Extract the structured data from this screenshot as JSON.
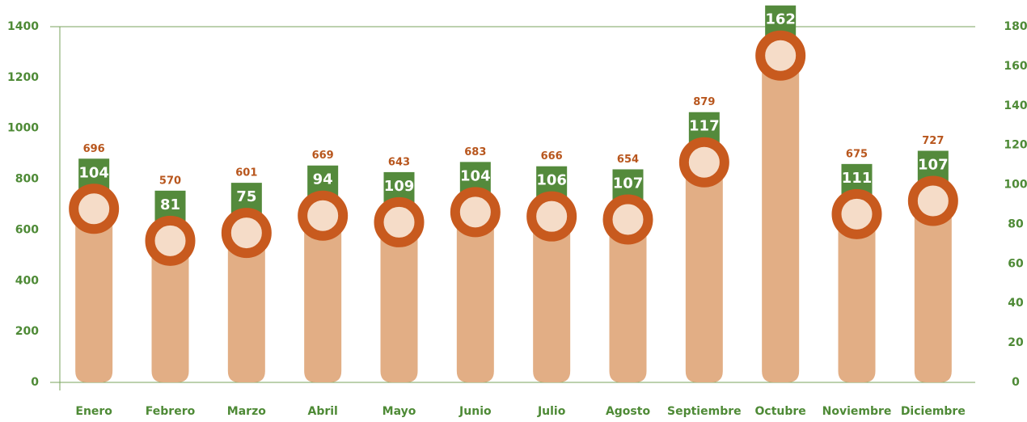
{
  "chart_data": {
    "type": "bar",
    "categories": [
      "Enero",
      "Febrero",
      "Marzo",
      "Abril",
      "Mayo",
      "Junio",
      "Julio",
      "Agosto",
      "Septiembre",
      "Octubre",
      "Noviembre",
      "Diciembre"
    ],
    "series": [
      {
        "color": "#e2ae85",
        "marker_color": "#c85a1e",
        "values": [
          696,
          570,
          601,
          669,
          643,
          683,
          666,
          654,
          879,
          1299,
          675,
          727
        ]
      },
      {
        "color": "#548a3c",
        "axis": "y2",
        "values": [
          104,
          81,
          75,
          94,
          109,
          104,
          106,
          107,
          117,
          162,
          111,
          107
        ]
      }
    ],
    "ylim": [
      0,
      1400
    ],
    "yticks": [
      0,
      200,
      400,
      600,
      800,
      1000,
      1200,
      1400
    ],
    "y2lim": [
      0,
      180
    ],
    "y2ticks": [
      0,
      20,
      40,
      60,
      80,
      100,
      120,
      140,
      160,
      180
    ]
  }
}
